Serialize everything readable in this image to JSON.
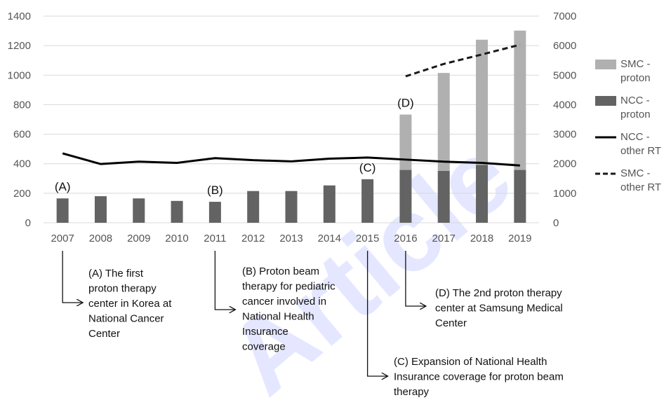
{
  "watermark": "Article",
  "chart_data": {
    "type": "bar",
    "categories": [
      "2007",
      "2008",
      "2009",
      "2010",
      "2011",
      "2012",
      "2013",
      "2014",
      "2015",
      "2016",
      "2017",
      "2018",
      "2019"
    ],
    "series": [
      {
        "name": "SMC -\nproton",
        "type": "bar",
        "axis": "left",
        "color": "#b0b0b0",
        "values": [
          null,
          null,
          null,
          null,
          null,
          null,
          null,
          null,
          null,
          375,
          663,
          848,
          944
        ]
      },
      {
        "name": "NCC -\nproton",
        "type": "bar",
        "axis": "left",
        "color": "#636363",
        "values": [
          165,
          180,
          165,
          148,
          142,
          215,
          215,
          253,
          295,
          358,
          352,
          392,
          358
        ]
      },
      {
        "name": "NCC -\nother RT",
        "type": "line",
        "axis": "right",
        "color": "#000000",
        "dash": "solid",
        "values": [
          2350,
          1990,
          2070,
          2030,
          2190,
          2120,
          2080,
          2170,
          2210,
          2140,
          2070,
          2030,
          1940
        ]
      },
      {
        "name": "SMC -\nother RT",
        "type": "line",
        "axis": "right",
        "color": "#1a1a1a",
        "dash": "dashed",
        "values": [
          null,
          null,
          null,
          null,
          null,
          null,
          null,
          null,
          null,
          4960,
          5380,
          5700,
          6030
        ]
      }
    ],
    "ylim": [
      0,
      1400
    ],
    "yticks": [
      0,
      200,
      400,
      600,
      800,
      1000,
      1200,
      1400
    ],
    "y2lim": [
      0,
      7000
    ],
    "y2ticks": [
      0,
      1000,
      2000,
      3000,
      4000,
      5000,
      6000,
      7000
    ],
    "grid": true,
    "legend_position": "right",
    "markers": [
      {
        "label": "(A)",
        "category": "2007"
      },
      {
        "label": "(B)",
        "category": "2011"
      },
      {
        "label": "(C)",
        "category": "2015"
      },
      {
        "label": "(D)",
        "category": "2016"
      }
    ],
    "annotations": [
      {
        "category": "2007",
        "lines": [
          "(A) The first",
          "proton therapy",
          "center in Korea at",
          "National Cancer",
          "Center"
        ]
      },
      {
        "category": "2011",
        "lines": [
          "(B) Proton beam",
          "therapy for pediatric",
          "cancer involved in",
          "National Health",
          "Insurance",
          "coverage"
        ]
      },
      {
        "category": "2015",
        "lines": [
          "(C) Expansion of National Health",
          "Insurance coverage for proton beam",
          "therapy"
        ]
      },
      {
        "category": "2016",
        "lines": [
          "(D) The 2nd proton therapy",
          "center at Samsung Medical",
          "Center"
        ]
      }
    ]
  }
}
